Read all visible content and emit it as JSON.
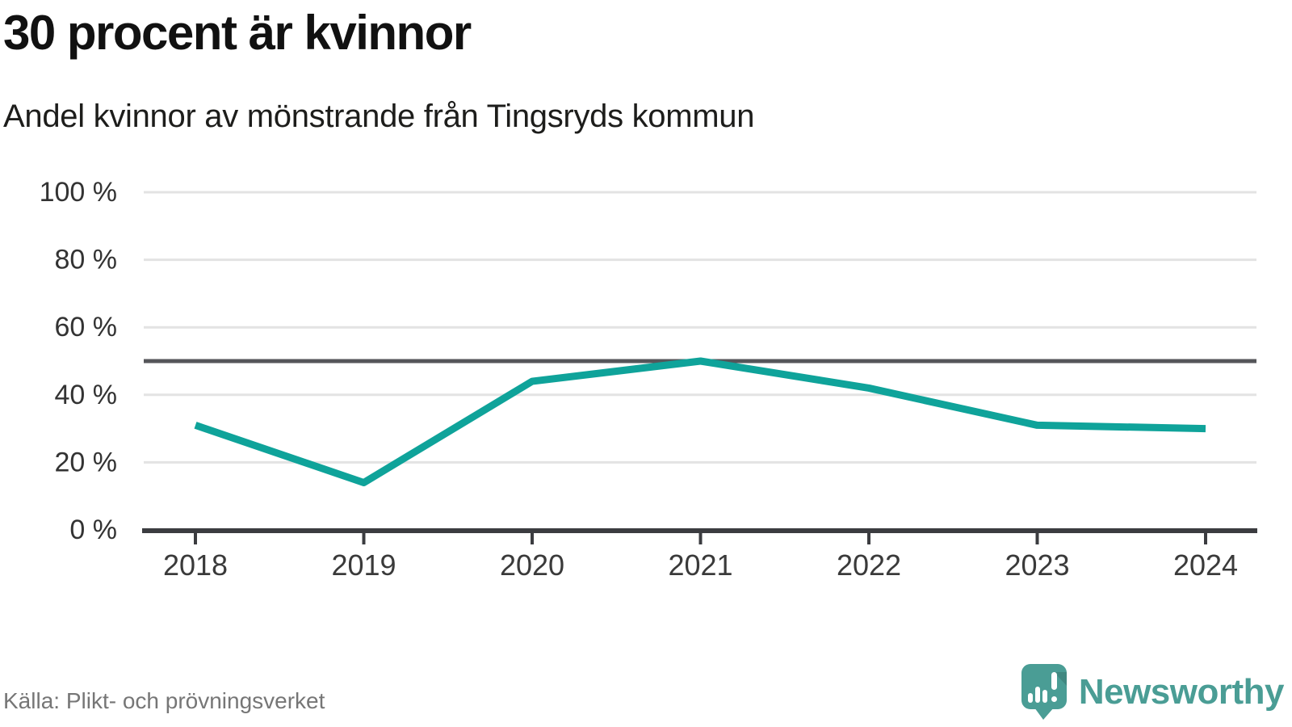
{
  "header": {
    "title": "30 procent är kvinnor",
    "subtitle": "Andel kvinnor av mönstrande från Tingsryds kommun"
  },
  "footer": {
    "source": "Källa: Plikt- och prövningsverket",
    "brand": "Newsworthy"
  },
  "colors": {
    "line": "#0fa39a",
    "reference_line": "#55565a",
    "grid": "#e3e3e3",
    "axis": "#3b3c40",
    "tick_label": "#3a3a3a",
    "brand_teal": "#4a9d95",
    "title_text": "#111111",
    "source_text": "#767676"
  },
  "chart_data": {
    "type": "line",
    "title": "30 procent är kvinnor",
    "subtitle": "Andel kvinnor av mönstrande från Tingsryds kommun",
    "x": [
      2018,
      2019,
      2020,
      2021,
      2022,
      2023,
      2024
    ],
    "x_labels": [
      "2018",
      "2019",
      "2020",
      "2021",
      "2022",
      "2023",
      "2024"
    ],
    "series": [
      {
        "name": "Andel kvinnor",
        "values": [
          31,
          14,
          44,
          50,
          42,
          31,
          30
        ]
      }
    ],
    "unit": "%",
    "ylim": [
      0,
      100
    ],
    "yticks": [
      0,
      20,
      40,
      60,
      80,
      100
    ],
    "ytick_labels": [
      "0 %",
      "20 %",
      "40 %",
      "60 %",
      "80 %",
      "100 %"
    ],
    "reference_line": 50,
    "grid": "horizontal",
    "legend": "none"
  }
}
